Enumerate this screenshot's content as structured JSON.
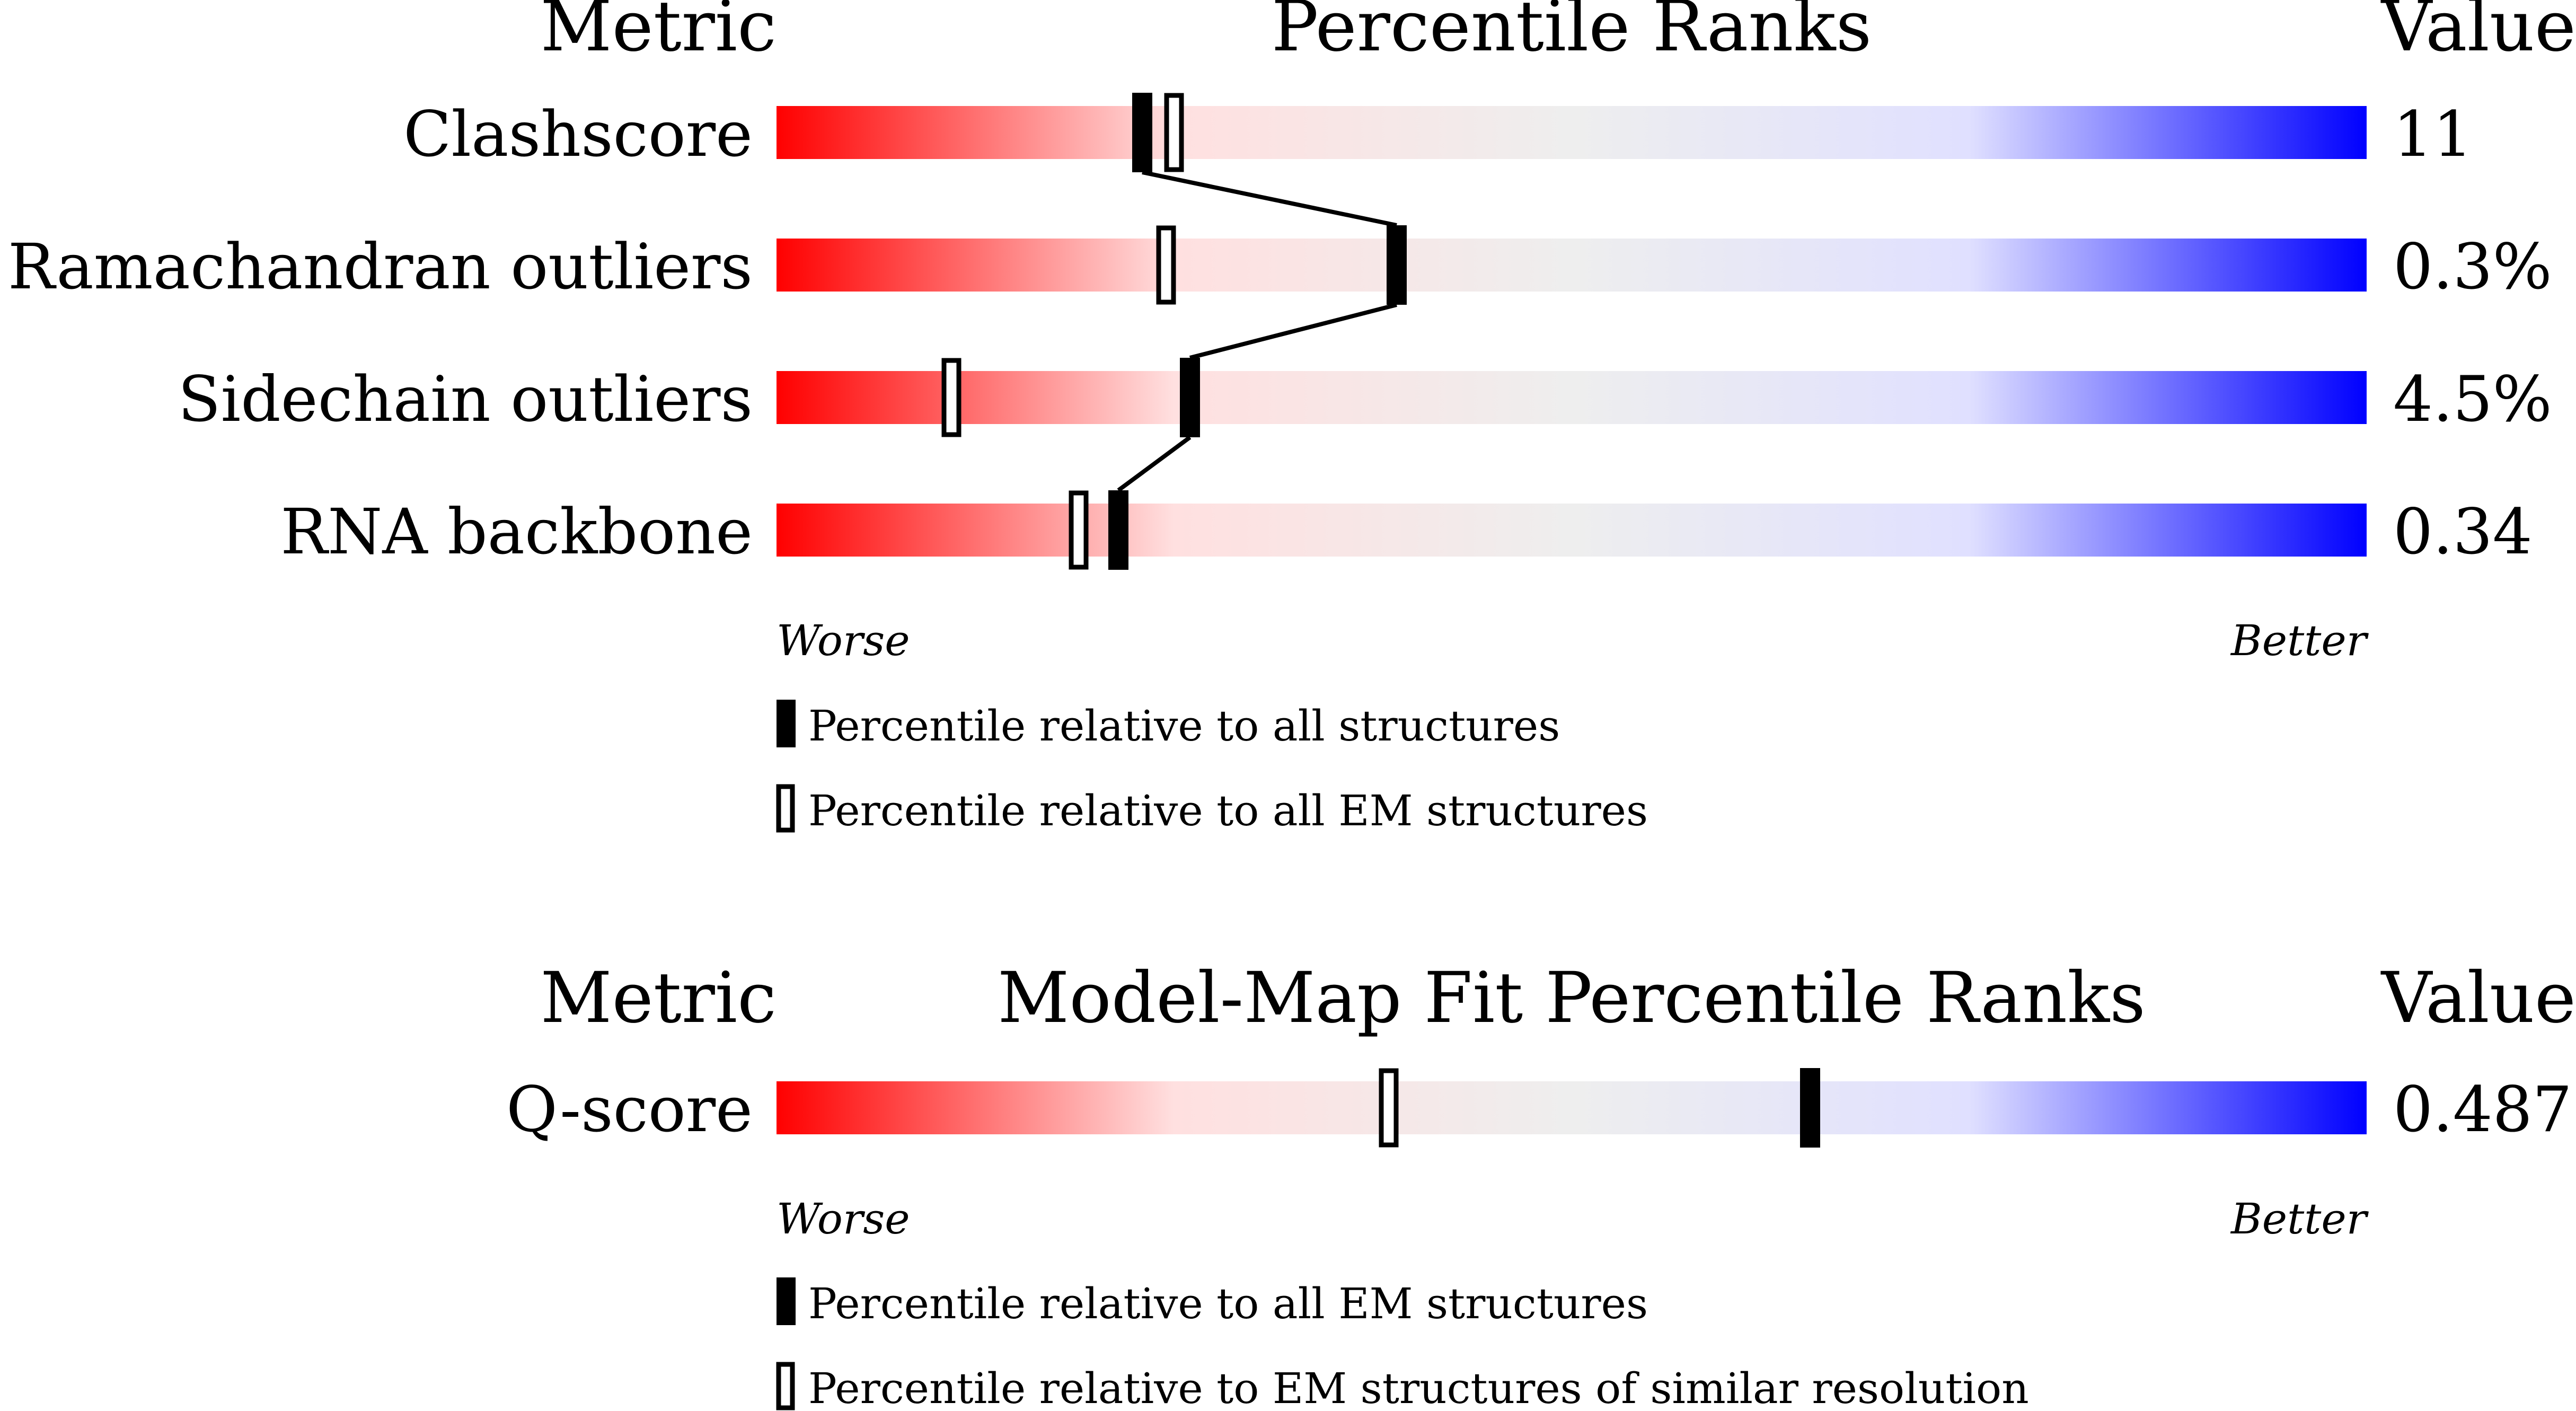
{
  "chart_data": [
    {
      "type": "percentile-ranks",
      "header": {
        "metric": "Metric",
        "title": "Percentile Ranks",
        "value": "Value"
      },
      "xlim": [
        0,
        100
      ],
      "axis": {
        "worse": "Worse",
        "better": "Better"
      },
      "series": [
        {
          "key": "all",
          "style": "filled"
        },
        {
          "key": "em",
          "style": "hollow"
        }
      ],
      "metrics": [
        {
          "label": "Clashscore",
          "value": "11",
          "all": 23,
          "em": 25
        },
        {
          "label": "Ramachandran outliers",
          "value": "0.3%",
          "all": 39,
          "em": 24.5
        },
        {
          "label": "Sidechain outliers",
          "value": "4.5%",
          "all": 26,
          "em": 11
        },
        {
          "label": "RNA backbone",
          "value": "0.34",
          "all": 21.5,
          "em": 19
        }
      ],
      "connect_series": "all",
      "legend": [
        {
          "style": "filled",
          "label": "Percentile relative to all structures"
        },
        {
          "style": "hollow",
          "label": "Percentile relative to all EM structures"
        }
      ],
      "gradient": [
        "#ff0000",
        "#ffe0e0",
        "#eeeeee",
        "#e0e0ff",
        "#0000ff"
      ]
    },
    {
      "type": "percentile-ranks",
      "header": {
        "metric": "Metric",
        "title": "Model-Map Fit Percentile Ranks",
        "value": "Value"
      },
      "xlim": [
        0,
        100
      ],
      "axis": {
        "worse": "Worse",
        "better": "Better"
      },
      "series": [
        {
          "key": "all",
          "style": "filled"
        },
        {
          "key": "em",
          "style": "hollow"
        }
      ],
      "metrics": [
        {
          "label": "Q-score",
          "value": "0.487",
          "all": 65,
          "em": 38.5
        }
      ],
      "connect_series": null,
      "legend": [
        {
          "style": "filled",
          "label": "Percentile relative to all EM structures"
        },
        {
          "style": "hollow",
          "label": "Percentile relative to EM structures of similar resolution"
        }
      ],
      "gradient": [
        "#ff0000",
        "#ffe0e0",
        "#eeeeee",
        "#e0e0ff",
        "#0000ff"
      ]
    }
  ]
}
